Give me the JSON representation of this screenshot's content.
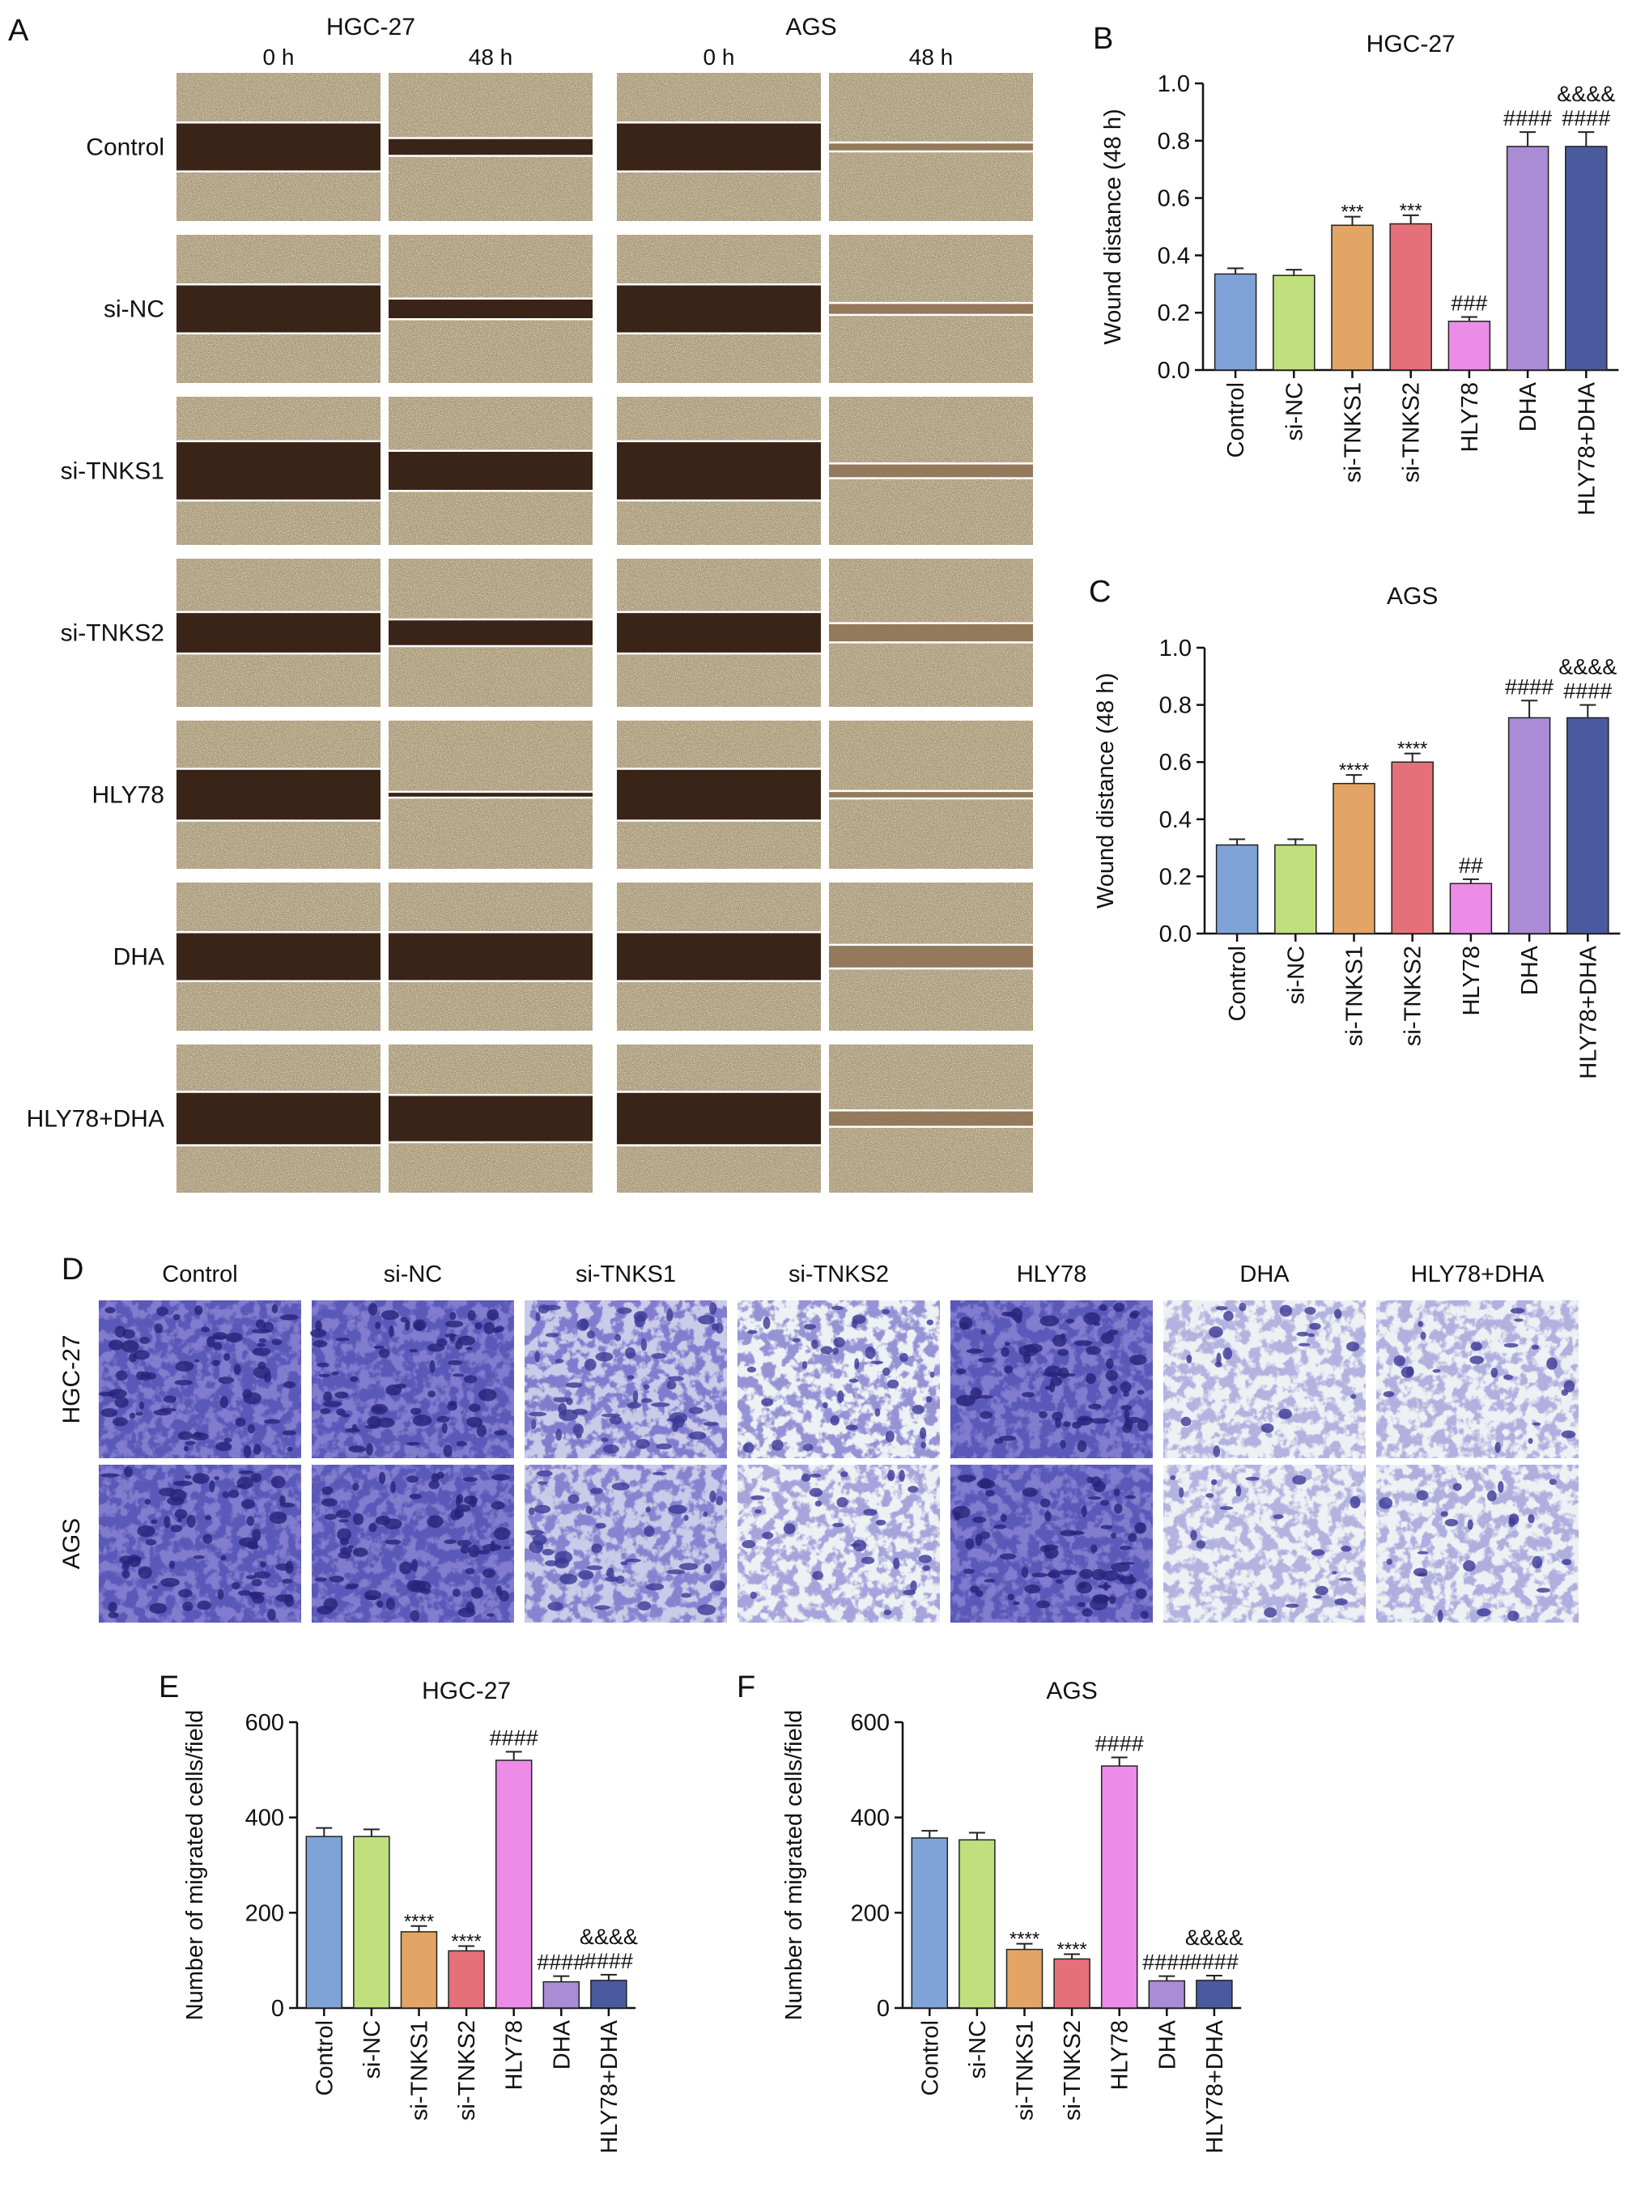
{
  "categories": [
    "Control",
    "si-NC",
    "si-TNKS1",
    "si-TNKS2",
    "HLY78",
    "DHA",
    "HLY78+DHA"
  ],
  "colors": [
    "#7fa3d7",
    "#bfe07d",
    "#e3a565",
    "#e6707a",
    "#ec8ce8",
    "#a98bd6",
    "#4a5a9e"
  ],
  "panel_a": {
    "letter": "A",
    "lines": [
      "HGC-27",
      "AGS"
    ],
    "times": [
      "0 h",
      "48 h"
    ],
    "wound": {
      "0h": [
        0.33,
        0.33,
        0.4,
        0.28,
        0.35,
        0.33,
        0.36
      ],
      "48h_hgc": [
        0.12,
        0.14,
        0.27,
        0.18,
        0.04,
        0.33,
        0.32
      ],
      "48h_ags": [
        0.06,
        0.08,
        0.1,
        0.13,
        0.05,
        0.16,
        0.11
      ]
    }
  },
  "panel_d": {
    "letter": "D",
    "rows": [
      "HGC-27",
      "AGS"
    ],
    "density_hgc": [
      1.0,
      1.0,
      0.75,
      0.45,
      1.0,
      0.18,
      0.2
    ],
    "density_ags": [
      1.0,
      1.0,
      0.55,
      0.3,
      1.0,
      0.18,
      0.22
    ]
  },
  "chart_data": [
    {
      "panel": "B",
      "type": "bar",
      "title": "HGC-27",
      "categories": [
        "Control",
        "si-NC",
        "si-TNKS1",
        "si-TNKS2",
        "HLY78",
        "DHA",
        "HLY78+DHA"
      ],
      "values": [
        0.335,
        0.33,
        0.505,
        0.51,
        0.17,
        0.78,
        0.78
      ],
      "errors": [
        0.02,
        0.02,
        0.03,
        0.03,
        0.015,
        0.05,
        0.05
      ],
      "annotations": [
        "",
        "",
        "***",
        "***",
        "###",
        "####",
        "&&&&\n####"
      ],
      "ylabel": "Wound distance (48 h)",
      "ylim": [
        0,
        1.0
      ],
      "yticks": [
        "0.0",
        "0.2",
        "0.4",
        "0.6",
        "0.8",
        "1.0"
      ]
    },
    {
      "panel": "C",
      "type": "bar",
      "title": "AGS",
      "categories": [
        "Control",
        "si-NC",
        "si-TNKS1",
        "si-TNKS2",
        "HLY78",
        "DHA",
        "HLY78+DHA"
      ],
      "values": [
        0.31,
        0.31,
        0.525,
        0.6,
        0.175,
        0.755,
        0.755
      ],
      "errors": [
        0.02,
        0.02,
        0.03,
        0.03,
        0.015,
        0.06,
        0.045
      ],
      "annotations": [
        "",
        "",
        "****",
        "****",
        "##",
        "####",
        "&&&&\n####"
      ],
      "ylabel": "Wound distance (48 h)",
      "ylim": [
        0,
        1.0
      ],
      "yticks": [
        "0.0",
        "0.2",
        "0.4",
        "0.6",
        "0.8",
        "1.0"
      ]
    },
    {
      "panel": "E",
      "type": "bar",
      "title": "HGC-27",
      "categories": [
        "Control",
        "si-NC",
        "si-TNKS1",
        "si-TNKS2",
        "HLY78",
        "DHA",
        "HLY78+DHA"
      ],
      "values": [
        360,
        360,
        160,
        120,
        520,
        55,
        58
      ],
      "errors": [
        18,
        15,
        12,
        10,
        18,
        12,
        12
      ],
      "annotations": [
        "",
        "",
        "****",
        "****",
        "####",
        "####",
        "&&&&\n####"
      ],
      "ylabel": "Number of migrated cells/field",
      "ylim": [
        0,
        600
      ],
      "yticks": [
        "0",
        "200",
        "400",
        "600"
      ]
    },
    {
      "panel": "F",
      "type": "bar",
      "title": "AGS",
      "categories": [
        "Control",
        "si-NC",
        "si-TNKS1",
        "si-TNKS2",
        "HLY78",
        "DHA",
        "HLY78+DHA"
      ],
      "values": [
        357,
        353,
        123,
        103,
        508,
        57,
        58
      ],
      "errors": [
        15,
        15,
        12,
        10,
        18,
        10,
        10
      ],
      "annotations": [
        "",
        "",
        "****",
        "****",
        "####",
        "####",
        "&&&&\n####"
      ],
      "ylabel": "Number of migrated cells/field",
      "ylim": [
        0,
        600
      ],
      "yticks": [
        "0",
        "200",
        "400",
        "600"
      ]
    }
  ]
}
